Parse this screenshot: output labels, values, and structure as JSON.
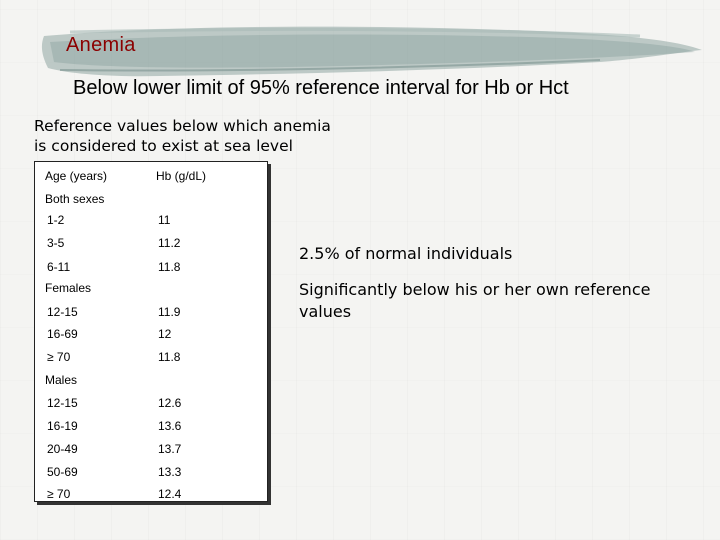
{
  "slide": {
    "title": "Anemia",
    "subtitle": "Below lower limit of 95% reference interval for Hb or Hct",
    "heading_line1": "Reference values below which anemia",
    "heading_line2": "is considered to exist at sea level",
    "title_color": "#8b0000",
    "brush_color": "#8fa6a2"
  },
  "table": {
    "header_age": "Age (years)",
    "header_hb": "Hb (g/dL)",
    "groups": [
      {
        "label": "Both sexes",
        "rows": [
          {
            "age": "1-2",
            "hb": "11"
          },
          {
            "age": "3-5",
            "hb": "11.2"
          },
          {
            "age": "6-11",
            "hb": "11.8"
          }
        ]
      },
      {
        "label": "Females",
        "rows": [
          {
            "age": "12-15",
            "hb": "11.9"
          },
          {
            "age": "16-69",
            "hb": "12"
          },
          {
            "age": "≥ 70",
            "hb": "11.8"
          }
        ]
      },
      {
        "label": "Males",
        "rows": [
          {
            "age": "12-15",
            "hb": "12.6"
          },
          {
            "age": "16-19",
            "hb": "13.6"
          },
          {
            "age": "20-49",
            "hb": "13.7"
          },
          {
            "age": "50-69",
            "hb": "13.3"
          },
          {
            "age": "≥ 70",
            "hb": "12.4"
          }
        ]
      }
    ]
  },
  "notes": {
    "point1": "2.5% of normal individuals",
    "point2": "Significantly below his or her own reference values"
  }
}
